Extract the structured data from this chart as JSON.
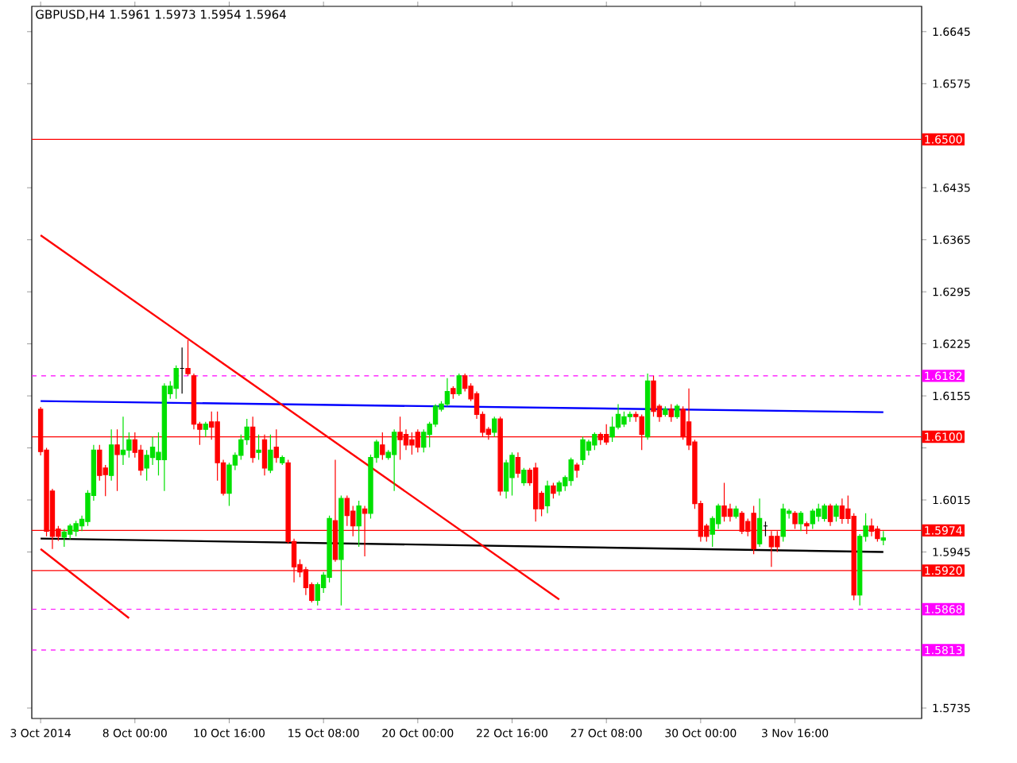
{
  "chart_data": {
    "type": "candlestick",
    "title": "GBPUSD,H4  1.5961 1.5973 1.5954 1.5964",
    "categories": [
      "3 Oct 2014",
      null,
      null,
      null,
      null,
      null,
      null,
      null,
      null,
      null,
      null,
      null,
      null,
      null,
      null,
      null,
      "8 Oct 00:00",
      null,
      null,
      null,
      null,
      null,
      null,
      null,
      null,
      null,
      null,
      null,
      null,
      null,
      null,
      null,
      "10 Oct 16:00",
      null,
      null,
      null,
      null,
      null,
      null,
      null,
      null,
      null,
      null,
      null,
      null,
      null,
      null,
      null,
      "15 Oct 08:00",
      null,
      null,
      null,
      null,
      null,
      null,
      null,
      null,
      null,
      null,
      null,
      null,
      null,
      null,
      null,
      "20 Oct 00:00",
      null,
      null,
      null,
      null,
      null,
      null,
      null,
      null,
      null,
      null,
      null,
      null,
      null,
      null,
      null,
      "22 Oct 16:00",
      null,
      null,
      null,
      null,
      null,
      null,
      null,
      null,
      null,
      null,
      null,
      null,
      null,
      null,
      null,
      "27 Oct 08:00",
      null,
      null,
      null,
      null,
      null,
      null,
      null,
      null,
      null,
      null,
      null,
      null,
      null,
      null,
      null,
      "30 Oct 00:00",
      null,
      null,
      null,
      null,
      null,
      null,
      null,
      null,
      null,
      null,
      null,
      null,
      null,
      null,
      null,
      "3 Nov 16:00",
      null,
      null,
      null,
      null,
      null,
      null,
      null,
      null,
      null,
      null,
      null,
      null,
      null,
      null,
      null
    ],
    "ohlc": [
      [
        1.6137,
        1.614,
        1.6075,
        1.608
      ],
      [
        1.6082,
        1.6085,
        1.5966,
        1.5973
      ],
      [
        1.6027,
        1.603,
        1.5949,
        1.5966
      ],
      [
        1.5976,
        1.598,
        1.596,
        1.5966
      ],
      [
        1.5965,
        1.5976,
        1.5952,
        1.5972
      ],
      [
        1.5969,
        1.5983,
        1.5962,
        1.598
      ],
      [
        1.5973,
        1.5987,
        1.5966,
        1.5983
      ],
      [
        1.598,
        1.5994,
        1.5973,
        1.5989
      ],
      [
        1.5986,
        1.6028,
        1.598,
        1.6024
      ],
      [
        1.6021,
        1.6089,
        1.6014,
        1.6082
      ],
      [
        1.6082,
        1.6089,
        1.6041,
        1.6048
      ],
      [
        1.6058,
        1.6062,
        1.602,
        1.6049
      ],
      [
        1.6048,
        1.611,
        1.6041,
        1.6089
      ],
      [
        1.6089,
        1.611,
        1.6027,
        1.6076
      ],
      [
        1.6076,
        1.6127,
        1.6062,
        1.6082
      ],
      [
        1.6082,
        1.6106,
        1.6072,
        1.6096
      ],
      [
        1.6096,
        1.6106,
        1.6072,
        1.6079
      ],
      [
        1.6082,
        1.6089,
        1.6048,
        1.6055
      ],
      [
        1.6058,
        1.6082,
        1.6041,
        1.6075
      ],
      [
        1.6072,
        1.61,
        1.6062,
        1.6086
      ],
      [
        1.6069,
        1.6106,
        1.6048,
        1.6079
      ],
      [
        1.6069,
        1.6172,
        1.6027,
        1.6168
      ],
      [
        1.6158,
        1.6175,
        1.6151,
        1.6168
      ],
      [
        1.6165,
        1.6196,
        1.6151,
        1.6192
      ],
      [
        1.6192,
        1.622,
        1.6158,
        1.6192
      ],
      [
        1.6192,
        1.623,
        1.6182,
        1.6185
      ],
      [
        1.6182,
        1.6185,
        1.611,
        1.6117
      ],
      [
        1.6117,
        1.612,
        1.6089,
        1.611
      ],
      [
        1.611,
        1.612,
        1.61,
        1.6117
      ],
      [
        1.612,
        1.6134,
        1.6096,
        1.6113
      ],
      [
        1.612,
        1.6134,
        1.6041,
        1.6065
      ],
      [
        1.6065,
        1.6069,
        1.6021,
        1.6024
      ],
      [
        1.6024,
        1.6065,
        1.6007,
        1.6062
      ],
      [
        1.6062,
        1.6079,
        1.6055,
        1.6075
      ],
      [
        1.6075,
        1.6103,
        1.6069,
        1.6096
      ],
      [
        1.6096,
        1.6124,
        1.6089,
        1.6113
      ],
      [
        1.6113,
        1.6127,
        1.6065,
        1.6072
      ],
      [
        1.6079,
        1.6103,
        1.6069,
        1.6082
      ],
      [
        1.6096,
        1.6103,
        1.6048,
        1.6058
      ],
      [
        1.6055,
        1.6103,
        1.6051,
        1.6082
      ],
      [
        1.6086,
        1.611,
        1.6065,
        1.6072
      ],
      [
        1.6065,
        1.6075,
        1.6062,
        1.6072
      ],
      [
        1.6065,
        1.6069,
        1.5956,
        1.5959
      ],
      [
        1.5959,
        1.5963,
        1.5904,
        1.5925
      ],
      [
        1.5928,
        1.5935,
        1.5911,
        1.5918
      ],
      [
        1.5921,
        1.5925,
        1.5887,
        1.5897
      ],
      [
        1.5901,
        1.5904,
        1.5877,
        1.588
      ],
      [
        1.588,
        1.5904,
        1.5873,
        1.5901
      ],
      [
        1.5897,
        1.5918,
        1.589,
        1.5914
      ],
      [
        1.5911,
        1.5994,
        1.5904,
        1.599
      ],
      [
        1.5987,
        1.6069,
        1.5932,
        1.5935
      ],
      [
        1.5935,
        1.6021,
        1.5873,
        1.6017
      ],
      [
        1.6017,
        1.6021,
        1.598,
        1.5994
      ],
      [
        1.6,
        1.6007,
        1.5966,
        1.598
      ],
      [
        1.598,
        1.6014,
        1.5952,
        1.6007
      ],
      [
        1.6003,
        1.6007,
        1.5939,
        1.5997
      ],
      [
        1.5997,
        1.6076,
        1.599,
        1.6072
      ],
      [
        1.6072,
        1.6096,
        1.6065,
        1.6093
      ],
      [
        1.6089,
        1.6106,
        1.6069,
        1.6076
      ],
      [
        1.6072,
        1.6082,
        1.6069,
        1.6079
      ],
      [
        1.6076,
        1.611,
        1.6027,
        1.6106
      ],
      [
        1.6106,
        1.6127,
        1.6069,
        1.6096
      ],
      [
        1.6103,
        1.611,
        1.6082,
        1.6089
      ],
      [
        1.6096,
        1.6106,
        1.6076,
        1.6089
      ],
      [
        1.6106,
        1.611,
        1.6079,
        1.6086
      ],
      [
        1.6086,
        1.611,
        1.6079,
        1.6106
      ],
      [
        1.6103,
        1.612,
        1.6086,
        1.6117
      ],
      [
        1.6117,
        1.6144,
        1.6113,
        1.6141
      ],
      [
        1.6137,
        1.6148,
        1.6134,
        1.6144
      ],
      [
        1.6144,
        1.6179,
        1.6141,
        1.6161
      ],
      [
        1.6165,
        1.6168,
        1.6151,
        1.6158
      ],
      [
        1.6158,
        1.6185,
        1.6155,
        1.6182
      ],
      [
        1.6182,
        1.6185,
        1.6161,
        1.6165
      ],
      [
        1.6168,
        1.6172,
        1.6148,
        1.6151
      ],
      [
        1.6158,
        1.6161,
        1.6124,
        1.613
      ],
      [
        1.613,
        1.6134,
        1.61,
        1.6106
      ],
      [
        1.611,
        1.6113,
        1.6096,
        1.6103
      ],
      [
        1.6106,
        1.6127,
        1.61,
        1.6124
      ],
      [
        1.6124,
        1.6127,
        1.6021,
        1.6027
      ],
      [
        1.6027,
        1.6069,
        1.6017,
        1.6065
      ],
      [
        1.6045,
        1.6079,
        1.6021,
        1.6075
      ],
      [
        1.6072,
        1.6079,
        1.6045,
        1.6051
      ],
      [
        1.6038,
        1.6058,
        1.6034,
        1.6055
      ],
      [
        1.6055,
        1.6058,
        1.6034,
        1.6038
      ],
      [
        1.6058,
        1.6065,
        1.5986,
        1.6003
      ],
      [
        1.6024,
        1.6027,
        1.5993,
        1.6003
      ],
      [
        1.6007,
        1.6041,
        1.5997,
        1.6034
      ],
      [
        1.6034,
        1.6038,
        1.6017,
        1.6024
      ],
      [
        1.6027,
        1.6041,
        1.6021,
        1.6038
      ],
      [
        1.6034,
        1.6048,
        1.6027,
        1.6045
      ],
      [
        1.6041,
        1.6072,
        1.6034,
        1.6069
      ],
      [
        1.6062,
        1.6065,
        1.6045,
        1.6055
      ],
      [
        1.6069,
        1.61,
        1.6062,
        1.6096
      ],
      [
        1.6082,
        1.6096,
        1.6075,
        1.6093
      ],
      [
        1.6089,
        1.6106,
        1.6082,
        1.6103
      ],
      [
        1.6103,
        1.6106,
        1.6089,
        1.6096
      ],
      [
        1.6103,
        1.6117,
        1.6089,
        1.6093
      ],
      [
        1.61,
        1.6127,
        1.6093,
        1.6113
      ],
      [
        1.6113,
        1.6144,
        1.611,
        1.613
      ],
      [
        1.6117,
        1.6134,
        1.6113,
        1.6127
      ],
      [
        1.6127,
        1.6134,
        1.612,
        1.613
      ],
      [
        1.613,
        1.6134,
        1.612,
        1.6127
      ],
      [
        1.6127,
        1.613,
        1.6082,
        1.6103
      ],
      [
        1.61,
        1.6185,
        1.6096,
        1.6175
      ],
      [
        1.6175,
        1.6182,
        1.6127,
        1.6134
      ],
      [
        1.6141,
        1.6144,
        1.612,
        1.6127
      ],
      [
        1.613,
        1.6141,
        1.6127,
        1.6137
      ],
      [
        1.6137,
        1.6144,
        1.612,
        1.6127
      ],
      [
        1.6127,
        1.6144,
        1.6124,
        1.6141
      ],
      [
        1.6137,
        1.6141,
        1.6096,
        1.61
      ],
      [
        1.612,
        1.6165,
        1.6082,
        1.6089
      ],
      [
        1.6093,
        1.6096,
        1.6003,
        1.601
      ],
      [
        1.601,
        1.6014,
        1.5959,
        1.5966
      ],
      [
        1.598,
        1.5983,
        1.5959,
        1.5966
      ],
      [
        1.5969,
        1.5993,
        1.5952,
        1.599
      ],
      [
        1.5983,
        1.601,
        1.5976,
        1.6007
      ],
      [
        1.6007,
        1.6038,
        1.5986,
        1.5993
      ],
      [
        1.6003,
        1.601,
        1.5986,
        1.5993
      ],
      [
        1.5993,
        1.6007,
        1.599,
        1.6003
      ],
      [
        1.5997,
        1.6,
        1.5969,
        1.5973
      ],
      [
        1.5986,
        1.599,
        1.5966,
        1.5973
      ],
      [
        1.5997,
        1.6007,
        1.5942,
        1.5949
      ],
      [
        1.5956,
        1.6017,
        1.5952,
        1.599
      ],
      [
        1.598,
        1.5986,
        1.5966,
        1.598
      ],
      [
        1.5966,
        1.5973,
        1.5925,
        1.5952
      ],
      [
        1.5966,
        1.5973,
        1.5945,
        1.5952
      ],
      [
        1.5966,
        1.601,
        1.5959,
        1.6003
      ],
      [
        1.5997,
        1.6003,
        1.599,
        1.6
      ],
      [
        1.5997,
        1.6,
        1.5976,
        1.5983
      ],
      [
        1.5983,
        1.6,
        1.5973,
        1.5997
      ],
      [
        1.5983,
        1.5986,
        1.5969,
        1.598
      ],
      [
        1.5983,
        1.6003,
        1.5976,
        1.6
      ],
      [
        1.5993,
        1.601,
        1.5986,
        1.6003
      ],
      [
        1.599,
        1.601,
        1.5986,
        1.6007
      ],
      [
        1.6007,
        1.601,
        1.598,
        1.5986
      ],
      [
        1.5993,
        1.601,
        1.5986,
        1.6007
      ],
      [
        1.6007,
        1.6017,
        1.5983,
        1.599
      ],
      [
        1.6003,
        1.6021,
        1.5983,
        1.599
      ],
      [
        1.5993,
        1.5997,
        1.588,
        1.5887
      ],
      [
        1.5887,
        1.5969,
        1.5873,
        1.5966
      ],
      [
        1.5966,
        1.5997,
        1.5959,
        1.598
      ],
      [
        1.598,
        1.599,
        1.5966,
        1.5973
      ],
      [
        1.5976,
        1.598,
        1.5959,
        1.5963
      ],
      [
        1.5961,
        1.5973,
        1.5954,
        1.5964
      ]
    ],
    "series": [
      {
        "type": "line",
        "color": "#0000ff",
        "values": [
          1.6148,
          null,
          null,
          null,
          null,
          null,
          null,
          null,
          null,
          null,
          null,
          null,
          null,
          null,
          null,
          null,
          null,
          null,
          null,
          null,
          null,
          null,
          null,
          null,
          null,
          null,
          null,
          null,
          null,
          null,
          null,
          null,
          null,
          null,
          null,
          null,
          null,
          null,
          null,
          null,
          null,
          null,
          null,
          null,
          null,
          null,
          null,
          null,
          null,
          null,
          null,
          null,
          null,
          null,
          null,
          null,
          null,
          null,
          null,
          null,
          null,
          null,
          null,
          null,
          null,
          null,
          null,
          null,
          null,
          null,
          null,
          null,
          null,
          null,
          null,
          null,
          null,
          null,
          null,
          null,
          null,
          null,
          null,
          null,
          null,
          null,
          null,
          null,
          null,
          null,
          null,
          null,
          null,
          null,
          null,
          null,
          null,
          null,
          null,
          null,
          null,
          null,
          null,
          null,
          null,
          null,
          null,
          null,
          null,
          null,
          null,
          null,
          null,
          null,
          null,
          null,
          null,
          null,
          null,
          null,
          null,
          null,
          null,
          null,
          null,
          null,
          null,
          null,
          null,
          null,
          null,
          null,
          null,
          null,
          null,
          null,
          null,
          null,
          null,
          null,
          null,
          null,
          null,
          1.6133
        ]
      },
      {
        "type": "line",
        "color": "#000000",
        "values": [
          1.5963,
          null,
          null,
          null,
          null,
          null,
          null,
          null,
          null,
          null,
          null,
          null,
          null,
          null,
          null,
          null,
          null,
          null,
          null,
          null,
          null,
          null,
          null,
          null,
          null,
          null,
          null,
          null,
          null,
          null,
          null,
          null,
          null,
          null,
          null,
          null,
          null,
          null,
          null,
          null,
          null,
          null,
          null,
          null,
          null,
          null,
          null,
          null,
          null,
          null,
          null,
          null,
          null,
          null,
          null,
          null,
          null,
          null,
          null,
          null,
          null,
          null,
          null,
          null,
          null,
          null,
          null,
          null,
          null,
          null,
          null,
          null,
          null,
          null,
          null,
          null,
          null,
          null,
          null,
          null,
          null,
          null,
          null,
          null,
          null,
          null,
          null,
          null,
          null,
          null,
          null,
          null,
          null,
          null,
          null,
          null,
          null,
          null,
          null,
          null,
          null,
          null,
          null,
          null,
          null,
          null,
          null,
          null,
          null,
          null,
          null,
          null,
          null,
          null,
          null,
          null,
          null,
          null,
          null,
          null,
          null,
          null,
          null,
          null,
          null,
          null,
          null,
          null,
          null,
          null,
          null,
          null,
          null,
          null,
          null,
          null,
          null,
          null,
          null,
          null,
          null,
          null,
          null,
          1.5945
        ]
      },
      {
        "type": "line",
        "color": "#ff0000",
        "values": [
          1.6371,
          null,
          null,
          null,
          null,
          null,
          null,
          null,
          null,
          null,
          null,
          null,
          null,
          null,
          null,
          null,
          null,
          null,
          null,
          null,
          null,
          null,
          null,
          null,
          null,
          null,
          null,
          null,
          null,
          null,
          null,
          null,
          null,
          null,
          null,
          null,
          null,
          null,
          null,
          null,
          null,
          null,
          null,
          null,
          null,
          null,
          null,
          null,
          null,
          null,
          null,
          null,
          null,
          null,
          null,
          null,
          null,
          null,
          null,
          null,
          null,
          null,
          null,
          null,
          null,
          null,
          null,
          null,
          null,
          null,
          null,
          null,
          null,
          null,
          null,
          null,
          null,
          null,
          null,
          null,
          null,
          null,
          null,
          null,
          null,
          null,
          null,
          null,
          1.5881,
          null,
          null,
          null,
          null,
          null,
          null,
          null,
          null,
          null,
          null,
          null,
          null,
          null,
          null,
          null,
          null,
          null,
          null,
          null,
          null,
          null,
          null,
          null,
          null,
          null,
          null,
          null,
          null,
          null,
          null,
          null,
          null,
          null,
          null,
          null,
          null,
          null,
          null,
          null,
          null,
          null,
          null,
          null,
          null,
          null,
          null,
          null,
          null,
          null,
          null,
          null,
          null,
          null,
          null,
          null
        ]
      },
      {
        "type": "line",
        "color": "#ff0000",
        "values": [
          1.5949,
          null,
          null,
          null,
          null,
          null,
          null,
          null,
          null,
          null,
          null,
          null,
          null,
          null,
          null,
          1.5856,
          null,
          null,
          null,
          null,
          null,
          null,
          null,
          null,
          null,
          null,
          null,
          null,
          null,
          null,
          null,
          null,
          null,
          null,
          null,
          null,
          null,
          null,
          null,
          null,
          null,
          null,
          null,
          null,
          null,
          null,
          null,
          null,
          null,
          null,
          null,
          null,
          null,
          null,
          null,
          null,
          null,
          null,
          null,
          null,
          null,
          null,
          null,
          null,
          null,
          null,
          null,
          null,
          null,
          null,
          null,
          null,
          null,
          null,
          null,
          null,
          null,
          null,
          null,
          null,
          null,
          null,
          null,
          null,
          null,
          null,
          null,
          null,
          null,
          null,
          null,
          null,
          null,
          null,
          null,
          null,
          null,
          null,
          null,
          null,
          null,
          null,
          null,
          null,
          null,
          null,
          null,
          null,
          null,
          null,
          null,
          null,
          null,
          null,
          null,
          null,
          null,
          null,
          null,
          null,
          null,
          null,
          null,
          null,
          null,
          null,
          null,
          null,
          null,
          null,
          null,
          null,
          null,
          null,
          null,
          null,
          null,
          null,
          null,
          null,
          null,
          null,
          null,
          null
        ]
      }
    ],
    "ylim": [
      1.5721,
      1.6679
    ],
    "yticks": [
      1.6645,
      1.6575,
      1.6435,
      1.6365,
      1.6295,
      1.6225,
      1.6155,
      {
        "value": 1.6085,
        "label": null
      },
      1.6015,
      1.5945,
      1.5735
    ],
    "ref_lines": [
      {
        "axis": "y",
        "value": 1.65,
        "label": "1.6500",
        "color": "#ff0000"
      },
      {
        "axis": "y",
        "value": 1.6182,
        "label": "1.6182",
        "color": "#ff00ff",
        "line_style": "dashed"
      },
      {
        "axis": "y",
        "value": 1.61,
        "label": "1.6100",
        "color": "#ff0000"
      },
      {
        "axis": "y",
        "value": 1.5974,
        "label": "1.5974",
        "color": "#ff0000"
      },
      {
        "axis": "y",
        "value": 1.592,
        "label": "1.5920",
        "color": "#ff0000"
      },
      {
        "axis": "y",
        "value": 1.5868,
        "label": "1.5868",
        "color": "#ff00ff",
        "line_style": "dashed"
      },
      {
        "axis": "y",
        "value": 1.5813,
        "label": "1.5813",
        "color": "#ff00ff",
        "line_style": "dashed"
      }
    ]
  }
}
